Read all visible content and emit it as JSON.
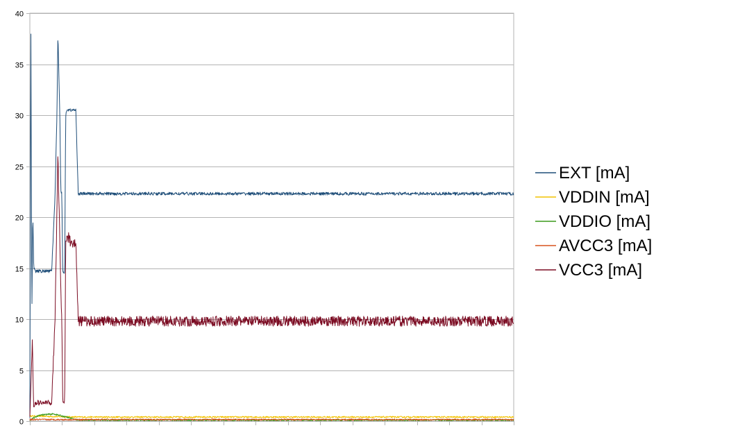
{
  "chart_data": {
    "type": "line",
    "title": "",
    "xlabel": "",
    "ylabel": "",
    "ylim": [
      0,
      40
    ],
    "yticks": [
      0,
      5,
      10,
      15,
      20,
      25,
      30,
      35,
      40
    ],
    "xlim": [
      0,
      1
    ],
    "x_ticks_count": 15,
    "grid": "horizontal",
    "legend_position": "right",
    "series": [
      {
        "name": "EXT [mA]",
        "color": "#1f4e79",
        "x": [
          0,
          0.002,
          0.004,
          0.006,
          0.008,
          0.011,
          0.045,
          0.052,
          0.056,
          0.058,
          0.062,
          0.064,
          0.066,
          0.068,
          0.072,
          0.074,
          0.076,
          0.08,
          0.085,
          0.095,
          0.1,
          0.105,
          1
        ],
        "y": [
          0.3,
          40,
          10,
          20.5,
          15,
          14.7,
          14.7,
          22,
          30,
          38,
          30,
          22.5,
          22.5,
          14.5,
          14.5,
          30,
          30.5,
          30.5,
          30.5,
          30.5,
          22.3,
          22.3,
          22.3
        ]
      },
      {
        "name": "VDDIN [mA]",
        "color": "#f2c200",
        "x": [
          0,
          0.1,
          1
        ],
        "y": [
          0.5,
          0.4,
          0.4
        ]
      },
      {
        "name": "VDDIO [mA]",
        "color": "#3a9a1a",
        "x": [
          0,
          0.02,
          0.05,
          0.1,
          1
        ],
        "y": [
          0.1,
          0.6,
          0.7,
          0.1,
          0.1
        ]
      },
      {
        "name": "AVCC3 [mA]",
        "color": "#d9541e",
        "x": [
          0,
          1
        ],
        "y": [
          0.15,
          0.15
        ]
      },
      {
        "name": "VCC3 [mA]",
        "color": "#7b0b22",
        "x": [
          0,
          0.005,
          0.008,
          0.011,
          0.045,
          0.052,
          0.058,
          0.062,
          0.066,
          0.068,
          0.072,
          0.074,
          0.076,
          0.08,
          0.085,
          0.095,
          0.1,
          0.105,
          1
        ],
        "y": [
          0.2,
          8,
          1,
          1.8,
          1.8,
          10,
          26,
          17.5,
          9.5,
          2,
          2,
          17.5,
          18,
          18,
          17.5,
          17.5,
          9.8,
          9.8,
          9.8
        ],
        "noise": 1.0
      }
    ]
  }
}
